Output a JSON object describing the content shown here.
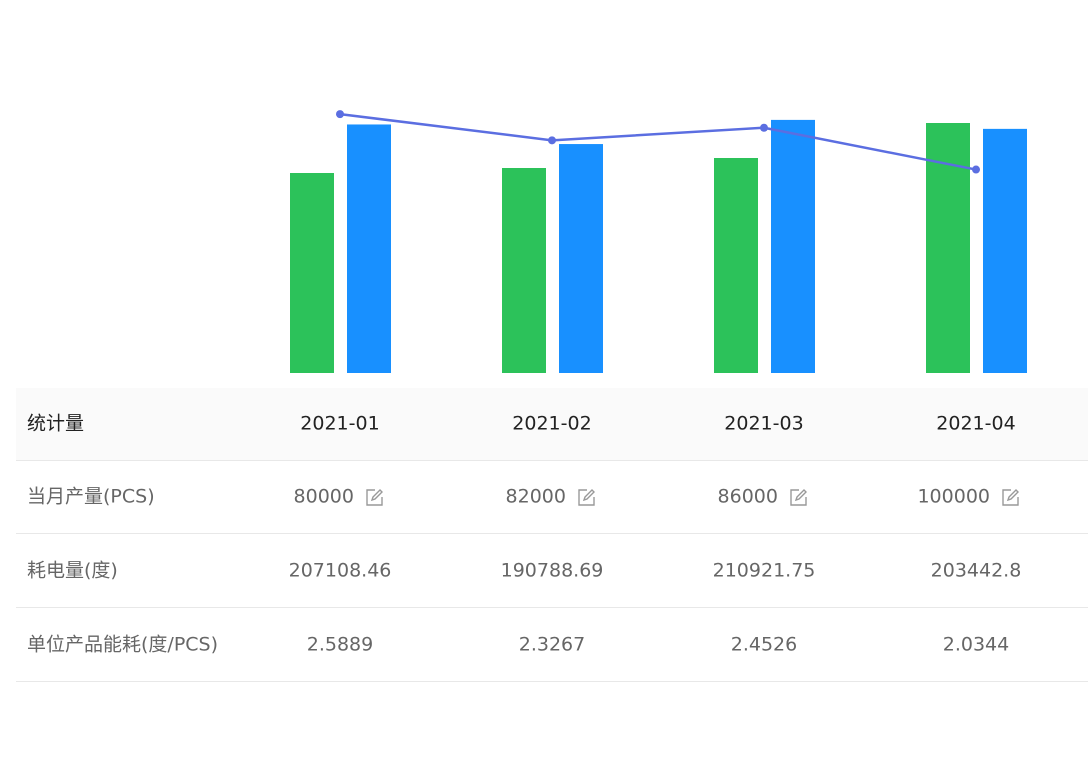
{
  "chart": {
    "ylim": [
      0,
      120000
    ],
    "y2lim": [
      0,
      250000
    ],
    "y3lim": [
      0,
      3
    ],
    "colors": [
      "#2cc25a",
      "#1890ff",
      "#5b6ee1"
    ]
  },
  "table": {
    "header": [
      "统计量",
      "2021-01",
      "2021-02",
      "2021-03",
      "2021-04"
    ],
    "rows": [
      [
        "当月产量(PCS)",
        80000,
        82000,
        86000,
        100000
      ],
      [
        "耗电量(度)",
        207108.46,
        190788.69,
        210921.75,
        203442.8
      ],
      [
        "单位产品能耗(度/PCS)",
        2.5889,
        2.3267,
        2.4526,
        2.0344
      ]
    ]
  }
}
